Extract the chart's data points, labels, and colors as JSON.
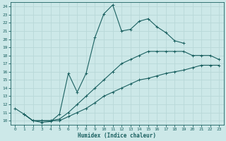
{
  "title": "",
  "xlabel": "Humidex (Indice chaleur)",
  "bg_color": "#cce8e8",
  "line_color": "#1a6060",
  "grid_color": "#b8d8d8",
  "xlim": [
    -0.5,
    23.5
  ],
  "ylim": [
    9.5,
    24.5
  ],
  "xticks": [
    0,
    1,
    2,
    3,
    4,
    5,
    6,
    7,
    8,
    9,
    10,
    11,
    12,
    13,
    14,
    15,
    16,
    17,
    18,
    19,
    20,
    21,
    22,
    23
  ],
  "yticks": [
    10,
    11,
    12,
    13,
    14,
    15,
    16,
    17,
    18,
    19,
    20,
    21,
    22,
    23,
    24
  ],
  "line1_x": [
    0,
    1,
    2,
    3,
    4,
    5,
    6,
    7,
    8,
    9,
    10,
    11,
    12,
    13,
    14,
    15,
    16,
    17,
    18,
    19
  ],
  "line1_y": [
    11.5,
    10.8,
    10.0,
    9.8,
    9.9,
    10.8,
    15.8,
    13.5,
    15.8,
    20.2,
    23.1,
    24.2,
    21.0,
    21.2,
    22.2,
    22.5,
    21.5,
    20.8,
    19.8,
    19.5
  ],
  "line2_x": [
    1,
    2,
    3,
    4,
    5,
    6,
    7,
    8,
    9,
    10,
    11,
    12,
    13,
    14,
    15,
    16,
    17,
    18,
    19,
    20,
    21,
    22,
    23
  ],
  "line2_y": [
    10.8,
    10.0,
    10.0,
    10.0,
    10.2,
    11.0,
    12.0,
    13.0,
    14.0,
    15.0,
    16.0,
    17.0,
    17.5,
    18.0,
    18.5,
    18.5,
    18.5,
    18.5,
    18.5,
    18.0,
    18.0,
    18.0,
    17.5
  ],
  "line3_x": [
    1,
    2,
    3,
    4,
    5,
    6,
    7,
    8,
    9,
    10,
    11,
    12,
    13,
    14,
    15,
    16,
    17,
    18,
    19,
    20,
    21,
    22,
    23
  ],
  "line3_y": [
    10.8,
    10.0,
    10.0,
    10.0,
    10.0,
    10.5,
    11.0,
    11.5,
    12.2,
    13.0,
    13.5,
    14.0,
    14.5,
    15.0,
    15.2,
    15.5,
    15.8,
    16.0,
    16.2,
    16.5,
    16.8,
    16.8,
    16.8
  ]
}
